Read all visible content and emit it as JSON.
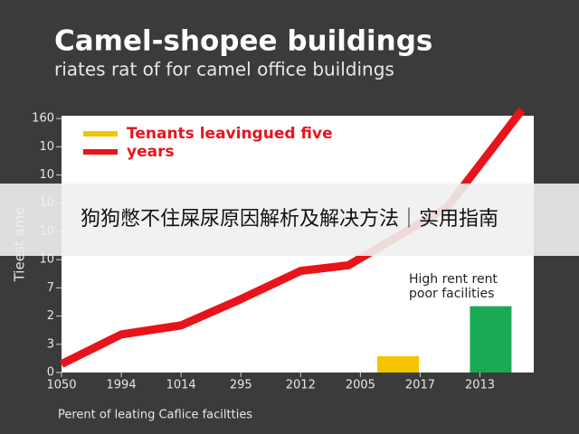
{
  "chart_data": {
    "type": "line",
    "title": "Camel-shopee buildings",
    "subtitle": "riates rat of for camel office buildings",
    "x_label": "Perent of leating Caflice faciltties",
    "y_label": "Tieest ame",
    "xlim": [
      0,
      7.9
    ],
    "xticks": [
      {
        "value": 0,
        "label": "1050"
      },
      {
        "value": 1,
        "label": "1994"
      },
      {
        "value": 2,
        "label": "1014"
      },
      {
        "value": 3,
        "label": "295"
      },
      {
        "value": 4,
        "label": "2012"
      },
      {
        "value": 5,
        "label": "2005"
      },
      {
        "value": 6,
        "label": "2017"
      },
      {
        "value": 7,
        "label": "2013"
      }
    ],
    "ylim": [
      0,
      9.1
    ],
    "yticks": [
      {
        "value": 0,
        "label": "0"
      },
      {
        "value": 1,
        "label": "3"
      },
      {
        "value": 2,
        "label": "2"
      },
      {
        "value": 3,
        "label": "7"
      },
      {
        "value": 4,
        "label": "10"
      },
      {
        "value": 5,
        "label": "10"
      },
      {
        "value": 6,
        "label": "10"
      },
      {
        "value": 7,
        "label": "10"
      },
      {
        "value": 8,
        "label": "10"
      },
      {
        "value": 9,
        "label": "160"
      }
    ],
    "series": [
      {
        "name": "Tenants leavingued five",
        "color": "#f2c500",
        "type": "bar",
        "x": [
          5.63
        ],
        "values": [
          0.58
        ]
      },
      {
        "name": "years",
        "color": "#e8141b",
        "type": "line",
        "x": [
          0,
          1,
          2,
          3,
          4,
          4.8,
          6.45,
          7.7
        ],
        "values": [
          0.3,
          1.35,
          1.67,
          2.6,
          3.6,
          3.8,
          5.85,
          9.3
        ]
      },
      {
        "name": "High rent rent poor facilities",
        "color": "#1aaa55",
        "type": "bar",
        "x": [
          7.18
        ],
        "values": [
          2.35
        ]
      }
    ],
    "annotation": [
      "High rent rent",
      "poor facilities"
    ],
    "banner": "狗狗憋不住屎尿原因解析及解决方法｜实用指南"
  }
}
